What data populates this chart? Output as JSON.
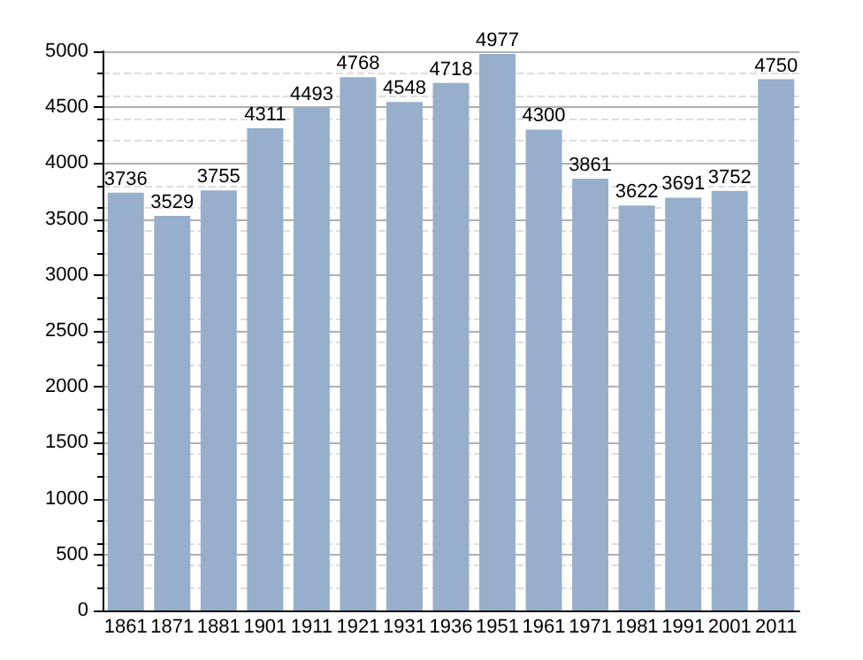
{
  "chart_data": {
    "type": "bar",
    "categories": [
      "1861",
      "1871",
      "1881",
      "1901",
      "1911",
      "1921",
      "1931",
      "1936",
      "1951",
      "1961",
      "1971",
      "1981",
      "1991",
      "2001",
      "2011"
    ],
    "values": [
      3736,
      3529,
      3755,
      4311,
      4493,
      4768,
      4548,
      4718,
      4977,
      4300,
      3861,
      3622,
      3691,
      3752,
      4750
    ],
    "color": "#97afcb",
    "ylim": [
      0,
      5000
    ],
    "yticks": [
      0,
      500,
      1000,
      1500,
      2000,
      2500,
      3000,
      3500,
      4000,
      4500,
      5000
    ],
    "grid": "y",
    "data_labels": true
  }
}
